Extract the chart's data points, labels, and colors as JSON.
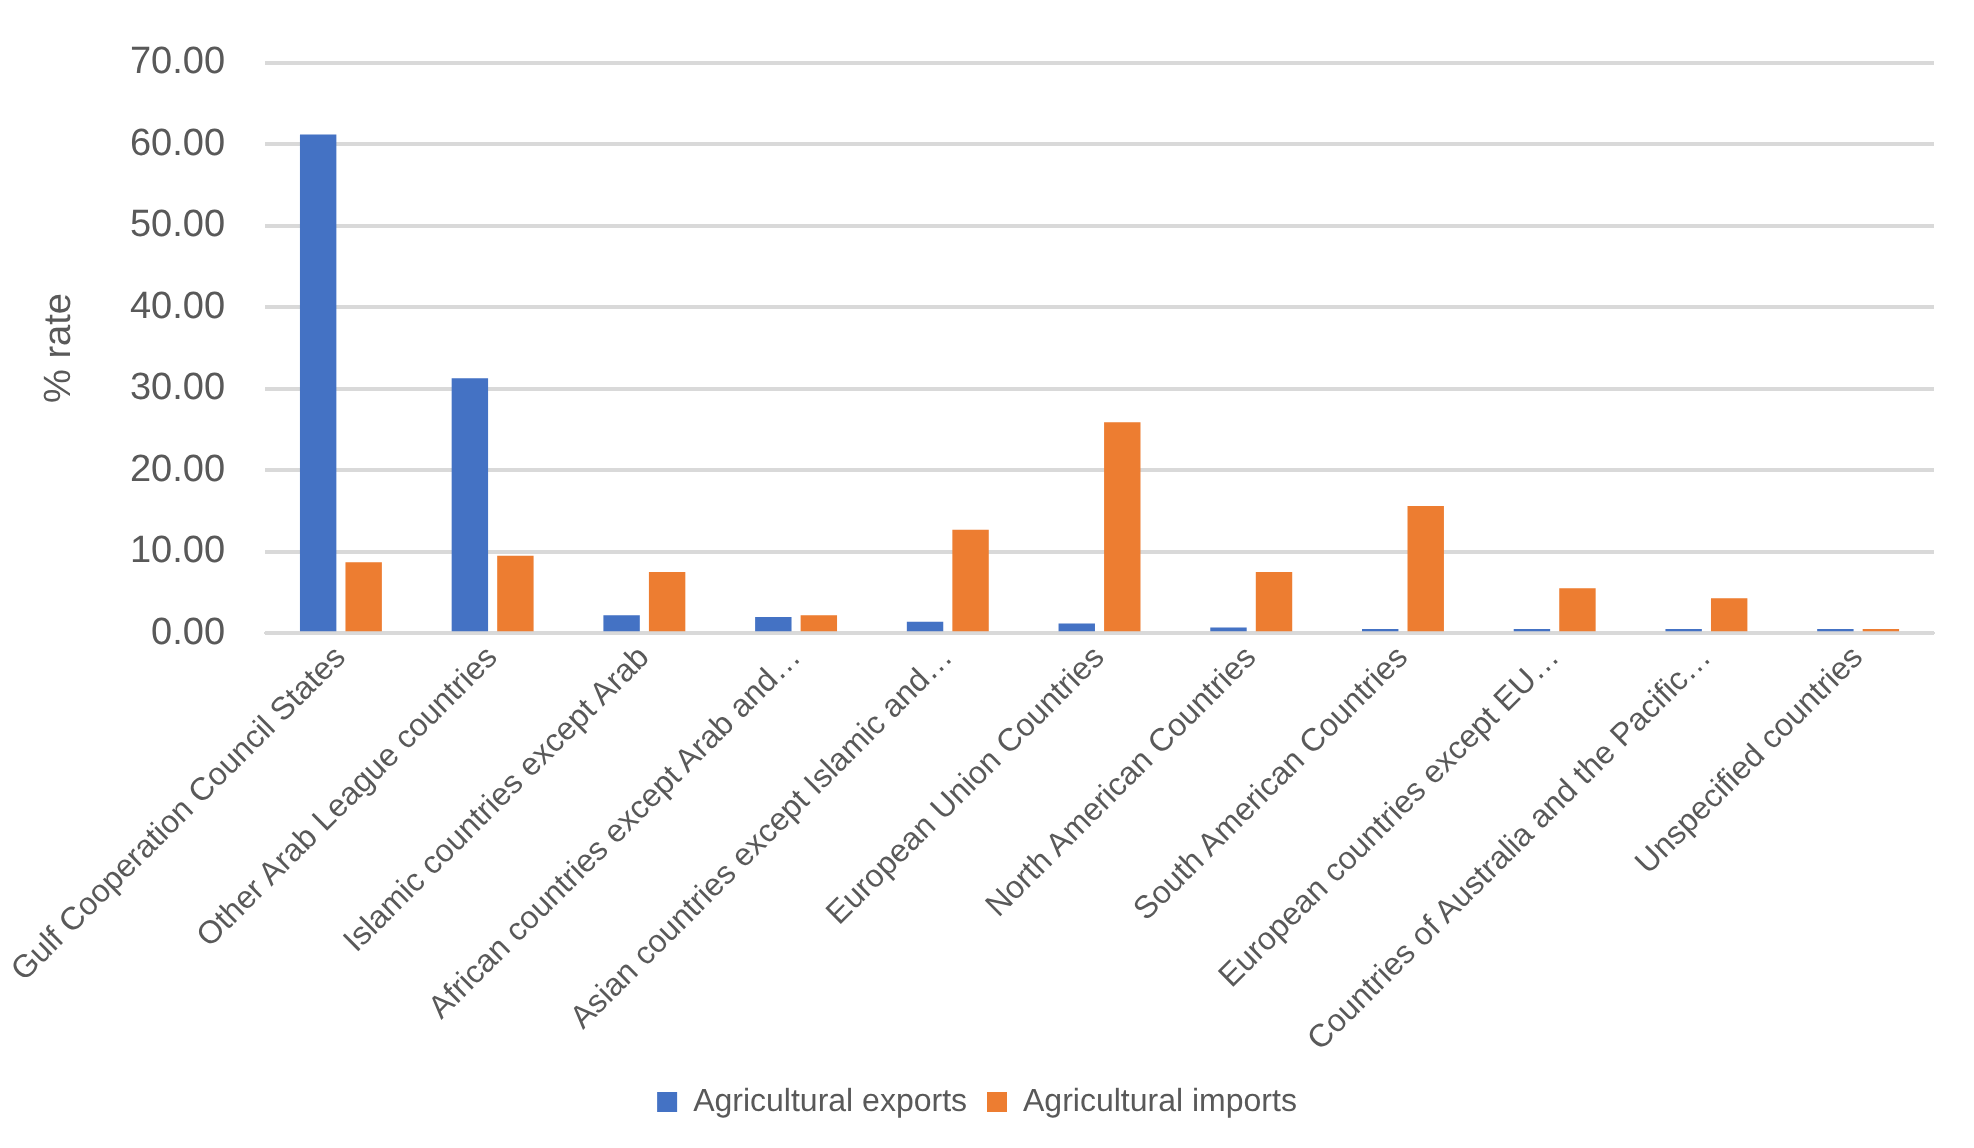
{
  "chart_data": {
    "type": "bar",
    "ylabel": "% rate",
    "categories": [
      "Gulf Cooperation Council States",
      "Other Arab League countries",
      "Islamic countries except Arab",
      "African countries except Arab and…",
      "Asian countries except Islamic and…",
      "European Union Countries",
      "North American Countries",
      "South American Countries",
      "European countries except EU…",
      "Countries of Australia and the Pacific…",
      "Unspecified countries"
    ],
    "series": [
      {
        "name": "Agricultural exports",
        "color": "#4472c4",
        "values": [
          61.2,
          31.3,
          2.2,
          2.0,
          1.4,
          1.2,
          0.7,
          0.5,
          0.5,
          0.5,
          0.5
        ]
      },
      {
        "name": "Agricultural imports",
        "color": "#ed7d31",
        "values": [
          8.7,
          9.5,
          7.5,
          2.2,
          12.7,
          25.9,
          7.5,
          15.6,
          5.5,
          4.3,
          0.5
        ]
      }
    ],
    "ylim": [
      0,
      70
    ],
    "yticks": [
      {
        "value": 0,
        "label": "0.00"
      },
      {
        "value": 10,
        "label": "10.00"
      },
      {
        "value": 20,
        "label": "20.00"
      },
      {
        "value": 30,
        "label": "30.00"
      },
      {
        "value": 40,
        "label": "40.00"
      },
      {
        "value": 50,
        "label": "50.00"
      },
      {
        "value": 60,
        "label": "60.00"
      },
      {
        "value": 70,
        "label": "70.00"
      }
    ],
    "grid": "y",
    "legend": "bottom"
  }
}
